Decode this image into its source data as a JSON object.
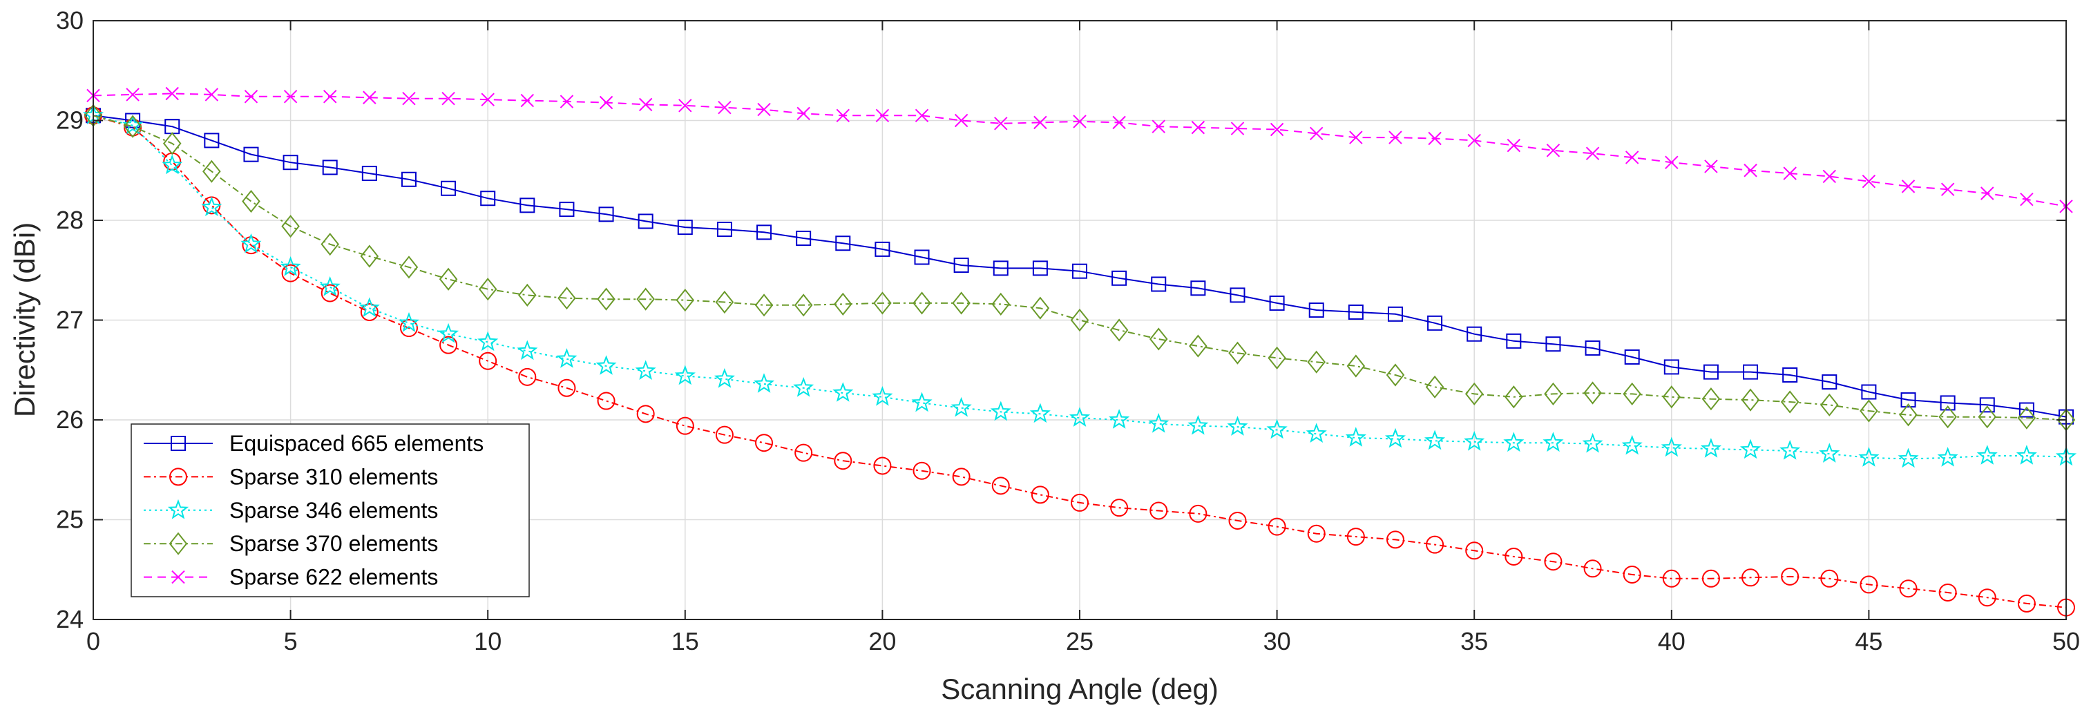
{
  "chart_data": {
    "type": "line",
    "xlabel": "Scanning Angle (deg)",
    "ylabel": "Directivity (dBi)",
    "xlim": [
      0,
      50
    ],
    "ylim": [
      24,
      30
    ],
    "xticks": [
      0,
      5,
      10,
      15,
      20,
      25,
      30,
      35,
      40,
      45,
      50
    ],
    "yticks": [
      24,
      25,
      26,
      27,
      28,
      29,
      30
    ],
    "grid": true,
    "legend_position": "bottom-left",
    "x": [
      0,
      1,
      2,
      3,
      4,
      5,
      6,
      7,
      8,
      9,
      10,
      11,
      12,
      13,
      14,
      15,
      16,
      17,
      18,
      19,
      20,
      21,
      22,
      23,
      24,
      25,
      26,
      27,
      28,
      29,
      30,
      31,
      32,
      33,
      34,
      35,
      36,
      37,
      38,
      39,
      40,
      41,
      42,
      43,
      44,
      45,
      46,
      47,
      48,
      49,
      50
    ],
    "series": [
      {
        "name": "Equispaced 665 elements",
        "color": "#0000cc",
        "marker": "square",
        "dash": "",
        "values": [
          29.05,
          29.0,
          28.94,
          28.8,
          28.66,
          28.58,
          28.53,
          28.47,
          28.41,
          28.32,
          28.22,
          28.15,
          28.11,
          28.06,
          27.99,
          27.93,
          27.91,
          27.88,
          27.82,
          27.77,
          27.71,
          27.63,
          27.55,
          27.52,
          27.52,
          27.49,
          27.42,
          27.36,
          27.32,
          27.25,
          27.17,
          27.1,
          27.08,
          27.06,
          26.97,
          26.86,
          26.79,
          26.76,
          26.72,
          26.63,
          26.53,
          26.48,
          26.48,
          26.45,
          26.38,
          26.28,
          26.2,
          26.17,
          26.15,
          26.1,
          26.03
        ]
      },
      {
        "name": "Sparse 310 elements",
        "color": "#ff0000",
        "marker": "circle",
        "dash": "10 5 3 5",
        "values": [
          29.05,
          28.93,
          28.59,
          28.15,
          27.75,
          27.47,
          27.27,
          27.08,
          26.92,
          26.75,
          26.59,
          26.43,
          26.32,
          26.19,
          26.06,
          25.94,
          25.85,
          25.77,
          25.67,
          25.59,
          25.54,
          25.49,
          25.43,
          25.34,
          25.25,
          25.17,
          25.12,
          25.09,
          25.06,
          24.99,
          24.93,
          24.86,
          24.83,
          24.8,
          24.75,
          24.69,
          24.63,
          24.58,
          24.51,
          24.45,
          24.41,
          24.41,
          24.42,
          24.43,
          24.41,
          24.35,
          24.31,
          24.27,
          24.22,
          24.16,
          24.12
        ]
      },
      {
        "name": "Sparse 346 elements",
        "color": "#00e5e5",
        "marker": "star",
        "dash": "3 5",
        "values": [
          29.05,
          28.95,
          28.55,
          28.13,
          27.76,
          27.53,
          27.33,
          27.12,
          26.97,
          26.86,
          26.78,
          26.69,
          26.61,
          26.54,
          26.49,
          26.44,
          26.41,
          26.36,
          26.32,
          26.27,
          26.23,
          26.17,
          26.12,
          26.08,
          26.06,
          26.02,
          26.0,
          25.96,
          25.94,
          25.93,
          25.9,
          25.86,
          25.82,
          25.81,
          25.79,
          25.78,
          25.77,
          25.77,
          25.76,
          25.74,
          25.72,
          25.71,
          25.7,
          25.69,
          25.66,
          25.62,
          25.61,
          25.62,
          25.64,
          25.64,
          25.63
        ]
      },
      {
        "name": "Sparse 370 elements",
        "color": "#6a9a2a",
        "marker": "diamond",
        "dash": "10 5 3 5",
        "values": [
          29.05,
          28.94,
          28.77,
          28.49,
          28.19,
          27.94,
          27.76,
          27.64,
          27.53,
          27.41,
          27.31,
          27.25,
          27.22,
          27.21,
          27.21,
          27.2,
          27.18,
          27.15,
          27.15,
          27.16,
          27.17,
          27.17,
          27.17,
          27.16,
          27.12,
          27.0,
          26.9,
          26.81,
          26.74,
          26.67,
          26.62,
          26.58,
          26.54,
          26.45,
          26.33,
          26.26,
          26.23,
          26.26,
          26.27,
          26.26,
          26.23,
          26.21,
          26.2,
          26.18,
          26.15,
          26.09,
          26.05,
          26.03,
          26.03,
          26.02,
          26.0
        ]
      },
      {
        "name": "Sparse 622 elements",
        "color": "#ff00ff",
        "marker": "x",
        "dash": "12 8",
        "values": [
          29.25,
          29.26,
          29.27,
          29.26,
          29.24,
          29.24,
          29.24,
          29.23,
          29.22,
          29.22,
          29.21,
          29.2,
          29.19,
          29.18,
          29.16,
          29.15,
          29.13,
          29.11,
          29.07,
          29.05,
          29.05,
          29.05,
          29.0,
          28.97,
          28.98,
          28.99,
          28.98,
          28.94,
          28.93,
          28.92,
          28.91,
          28.87,
          28.83,
          28.83,
          28.82,
          28.8,
          28.75,
          28.7,
          28.67,
          28.63,
          28.58,
          28.54,
          28.5,
          28.47,
          28.44,
          28.39,
          28.34,
          28.31,
          28.27,
          28.21,
          28.14
        ]
      }
    ]
  }
}
